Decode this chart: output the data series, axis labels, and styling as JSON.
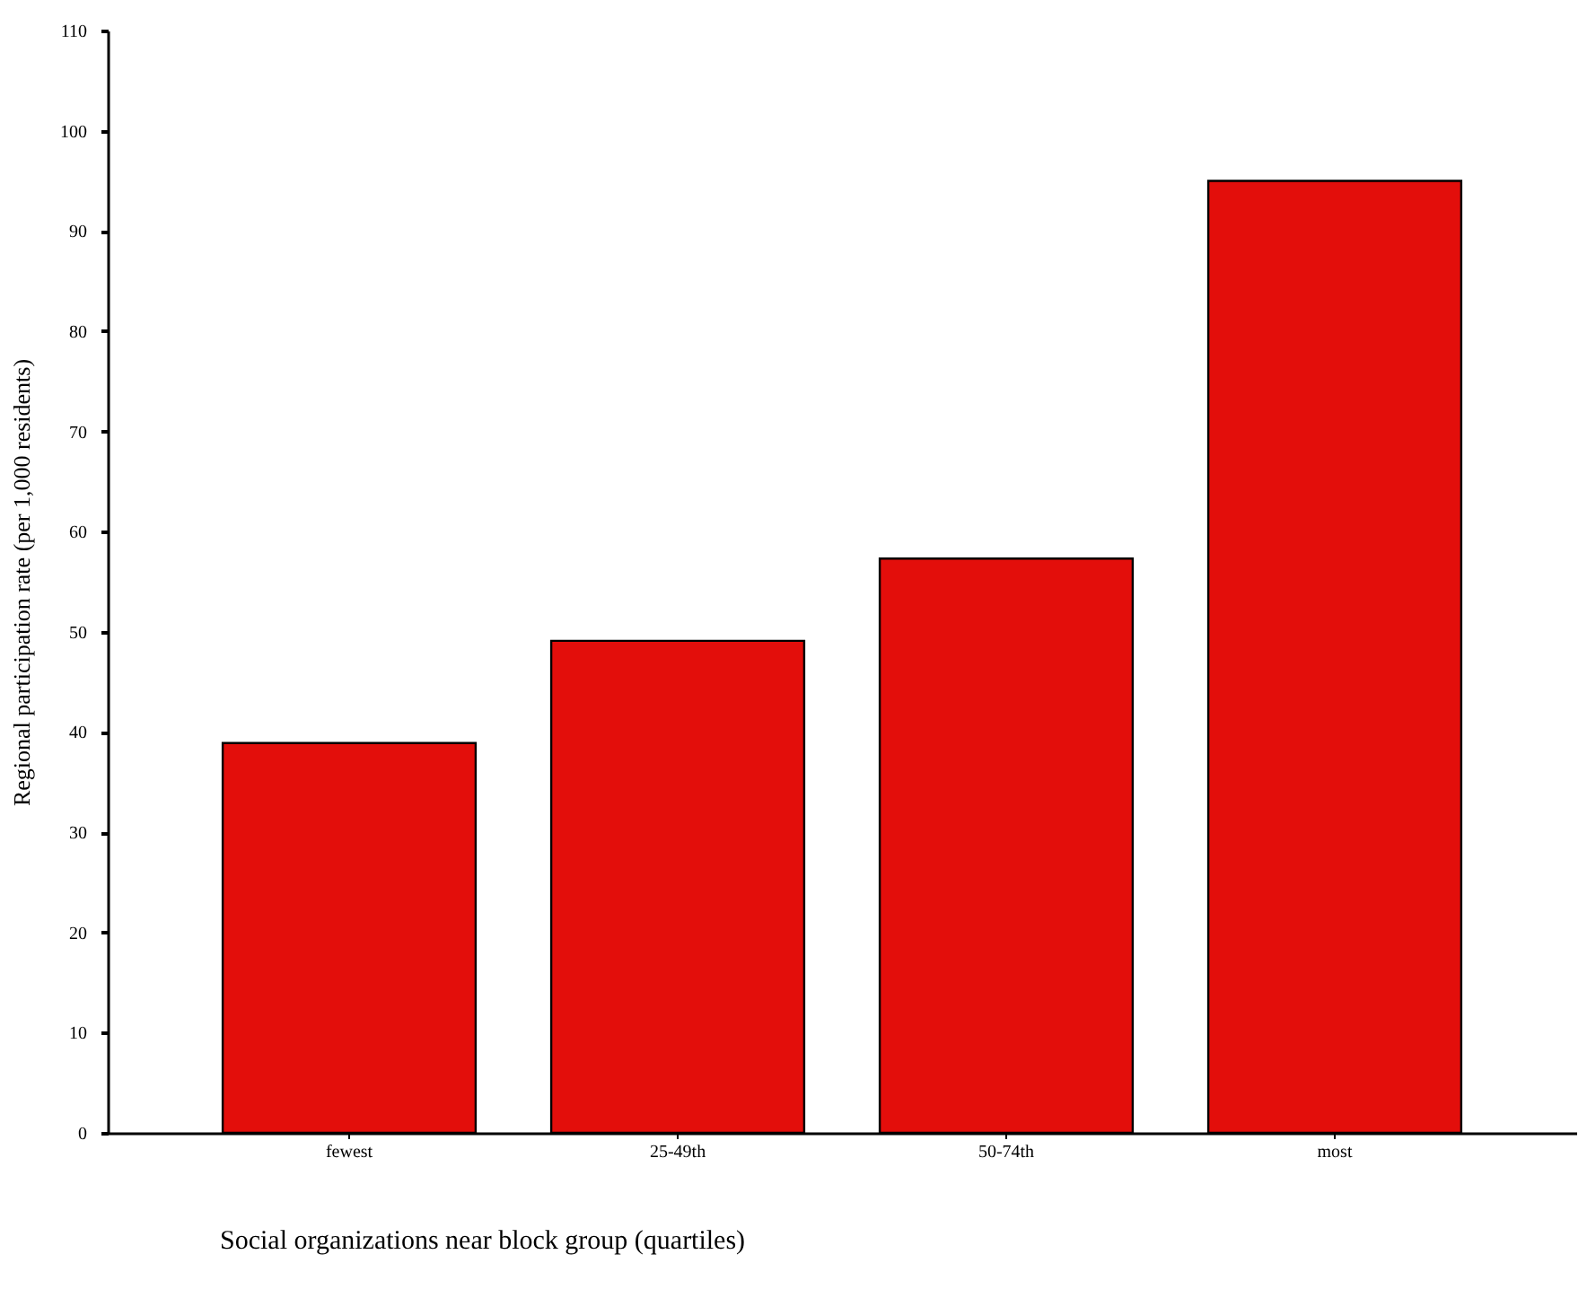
{
  "chart_data": {
    "type": "bar",
    "xlabel": "Social organizations near block group (quartiles)",
    "ylabel": "Regional participation rate (per 1,000 residents)",
    "categories": [
      "fewest",
      "25-49th",
      "50-74th",
      "most"
    ],
    "values": [
      38.9,
      49.1,
      57.3,
      95
    ],
    "color": "#e30e0b",
    "ylim": [
      0,
      110
    ],
    "yticks": [
      0,
      10,
      20,
      30,
      40,
      50,
      60,
      70,
      80,
      90,
      100,
      110
    ],
    "grid": false
  }
}
